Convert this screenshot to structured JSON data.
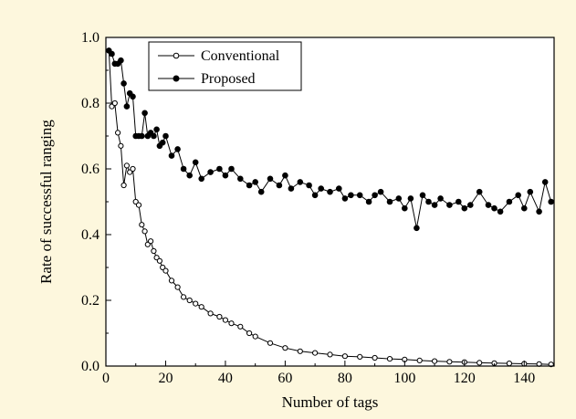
{
  "chart_data": {
    "type": "line",
    "xlabel": "Number of tags",
    "ylabel": "Rate of successful ranging",
    "xlim": [
      0,
      150
    ],
    "ylim": [
      0,
      1.0
    ],
    "xticks": [
      "0",
      "20",
      "40",
      "60",
      "80",
      "100",
      "120",
      "140"
    ],
    "yticks": [
      "0.0",
      "0.2",
      "0.4",
      "0.6",
      "0.8",
      "1.0"
    ],
    "grid": false,
    "legend_position": "top-left",
    "background": "#fdf7dd",
    "plot_background": "#ffffff",
    "series": [
      {
        "name": "Conventional",
        "marker": "open-circle",
        "x": [
          1,
          2,
          3,
          4,
          5,
          6,
          7,
          8,
          9,
          10,
          11,
          12,
          13,
          14,
          15,
          16,
          17,
          18,
          19,
          20,
          22,
          24,
          26,
          28,
          30,
          32,
          35,
          38,
          40,
          42,
          45,
          48,
          50,
          55,
          60,
          65,
          70,
          75,
          80,
          85,
          90,
          95,
          100,
          105,
          110,
          115,
          120,
          125,
          130,
          135,
          140,
          145,
          149
        ],
        "values": [
          0.96,
          0.79,
          0.8,
          0.71,
          0.67,
          0.55,
          0.61,
          0.59,
          0.6,
          0.5,
          0.49,
          0.43,
          0.41,
          0.37,
          0.38,
          0.35,
          0.33,
          0.32,
          0.3,
          0.29,
          0.26,
          0.24,
          0.21,
          0.2,
          0.19,
          0.18,
          0.16,
          0.15,
          0.14,
          0.13,
          0.12,
          0.1,
          0.09,
          0.07,
          0.055,
          0.045,
          0.04,
          0.035,
          0.03,
          0.028,
          0.025,
          0.022,
          0.02,
          0.017,
          0.015,
          0.013,
          0.012,
          0.01,
          0.009,
          0.008,
          0.007,
          0.006,
          0.005
        ]
      },
      {
        "name": "Proposed",
        "marker": "filled-circle",
        "x": [
          1,
          2,
          3,
          4,
          5,
          6,
          7,
          8,
          9,
          10,
          11,
          12,
          13,
          14,
          15,
          16,
          17,
          18,
          19,
          20,
          22,
          24,
          26,
          28,
          30,
          32,
          35,
          38,
          40,
          42,
          45,
          48,
          50,
          52,
          55,
          58,
          60,
          62,
          65,
          68,
          70,
          72,
          75,
          78,
          80,
          82,
          85,
          88,
          90,
          92,
          95,
          98,
          100,
          102,
          104,
          106,
          108,
          110,
          112,
          115,
          118,
          120,
          122,
          125,
          128,
          130,
          132,
          135,
          138,
          140,
          142,
          145,
          147,
          149
        ],
        "values": [
          0.96,
          0.95,
          0.92,
          0.92,
          0.93,
          0.86,
          0.79,
          0.83,
          0.82,
          0.7,
          0.7,
          0.7,
          0.77,
          0.7,
          0.71,
          0.7,
          0.72,
          0.67,
          0.68,
          0.7,
          0.64,
          0.66,
          0.6,
          0.58,
          0.62,
          0.57,
          0.59,
          0.6,
          0.58,
          0.6,
          0.57,
          0.55,
          0.56,
          0.53,
          0.57,
          0.55,
          0.58,
          0.54,
          0.56,
          0.55,
          0.52,
          0.54,
          0.53,
          0.54,
          0.51,
          0.52,
          0.52,
          0.5,
          0.52,
          0.53,
          0.5,
          0.51,
          0.48,
          0.51,
          0.42,
          0.52,
          0.5,
          0.49,
          0.51,
          0.49,
          0.5,
          0.48,
          0.49,
          0.53,
          0.49,
          0.48,
          0.47,
          0.5,
          0.52,
          0.48,
          0.53,
          0.47,
          0.56,
          0.5
        ]
      }
    ]
  }
}
